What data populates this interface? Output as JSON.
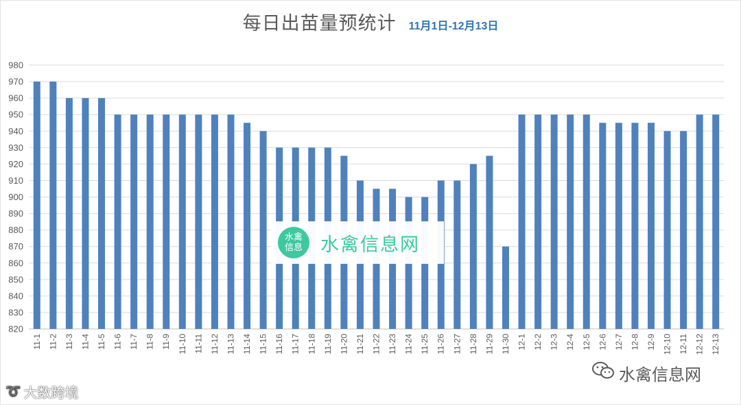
{
  "chart_data": {
    "type": "bar",
    "title": "每日出苗量预统计",
    "subtitle": "11月1日-12月13日",
    "categories": [
      "11-1",
      "11-2",
      "11-3",
      "11-4",
      "11-5",
      "11-6",
      "11-7",
      "11-8",
      "11-9",
      "11-10",
      "11-11",
      "11-12",
      "11-13",
      "11-14",
      "11-15",
      "11-16",
      "11-17",
      "11-18",
      "11-19",
      "11-20",
      "11-21",
      "11-22",
      "11-23",
      "11-24",
      "11-25",
      "11-26",
      "11-27",
      "11-28",
      "11-29",
      "11-30",
      "12-1",
      "12-2",
      "12-3",
      "12-4",
      "12-5",
      "12-6",
      "12-7",
      "12-8",
      "12-9",
      "12-10",
      "12-11",
      "12-12",
      "12-13"
    ],
    "values": [
      970,
      970,
      960,
      960,
      960,
      950,
      950,
      950,
      950,
      950,
      950,
      950,
      950,
      945,
      940,
      930,
      930,
      930,
      930,
      925,
      910,
      905,
      905,
      900,
      900,
      910,
      910,
      920,
      925,
      870,
      950,
      950,
      950,
      950,
      950,
      945,
      945,
      945,
      945,
      940,
      940,
      950,
      950
    ],
    "ylim": [
      820,
      980
    ],
    "yticks": [
      980,
      970,
      960,
      950,
      940,
      930,
      920,
      910,
      900,
      890,
      880,
      870,
      860,
      850,
      840,
      830,
      820
    ],
    "xlabel": "",
    "ylabel": "",
    "grid": true,
    "bar_color": "#4f81bd",
    "grid_color": "#d9d9d9"
  },
  "watermarks": {
    "center_logo_line1": "水禽",
    "center_logo_line2": "信息",
    "center_text": "水禽信息网",
    "bottom_left": "大数跨境",
    "bottom_right": "水禽信息网",
    "brand_color": "#3dc9a0"
  }
}
